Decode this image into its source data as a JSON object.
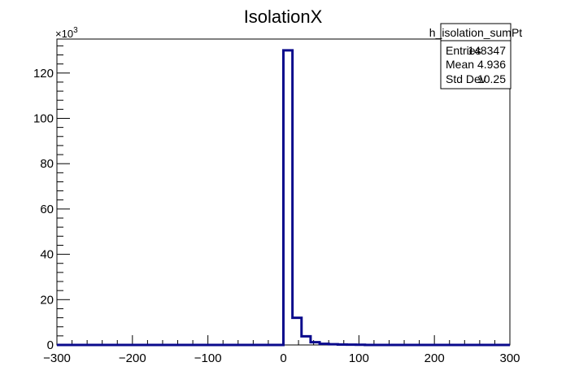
{
  "colors": {
    "histogram_line": "#0a0a8c",
    "frame": "#000000",
    "background": "#ffffff"
  },
  "chart_data": {
    "type": "histogram",
    "title": "IsolationX",
    "xlabel": "",
    "ylabel": "",
    "xlim": [
      -300,
      300
    ],
    "ylim": [
      0,
      135000
    ],
    "y_multiplier_label": "×10",
    "y_multiplier_exponent": "3",
    "x_ticks": [
      {
        "value": -300,
        "label": "−300"
      },
      {
        "value": -200,
        "label": "−200"
      },
      {
        "value": -100,
        "label": "−100"
      },
      {
        "value": 0,
        "label": "0"
      },
      {
        "value": 100,
        "label": "100"
      },
      {
        "value": 200,
        "label": "200"
      },
      {
        "value": 300,
        "label": "300"
      }
    ],
    "y_ticks": [
      {
        "value": 0,
        "label": "0"
      },
      {
        "value": 20000,
        "label": "20"
      },
      {
        "value": 40000,
        "label": "40"
      },
      {
        "value": 60000,
        "label": "60"
      },
      {
        "value": 80000,
        "label": "80"
      },
      {
        "value": 100000,
        "label": "100"
      },
      {
        "value": 120000,
        "label": "120"
      }
    ],
    "bin_width": 12,
    "bins": [
      {
        "x_low": 0,
        "x_high": 12,
        "count": 130000
      },
      {
        "x_low": 12,
        "x_high": 24,
        "count": 12000
      },
      {
        "x_low": 24,
        "x_high": 36,
        "count": 3800
      },
      {
        "x_low": 36,
        "x_high": 48,
        "count": 1200
      },
      {
        "x_low": 48,
        "x_high": 60,
        "count": 500
      },
      {
        "x_low": 60,
        "x_high": 72,
        "count": 300
      },
      {
        "x_low": 72,
        "x_high": 84,
        "count": 200
      },
      {
        "x_low": 84,
        "x_high": 96,
        "count": 120
      },
      {
        "x_low": 96,
        "x_high": 108,
        "count": 80
      }
    ]
  },
  "stats_box": {
    "name": "h_isolation_sumPt",
    "rows": [
      {
        "label": "Entries",
        "value": "148347"
      },
      {
        "label": "Mean",
        "value": "4.936"
      },
      {
        "label": "Std Dev",
        "value": "10.25"
      }
    ]
  }
}
